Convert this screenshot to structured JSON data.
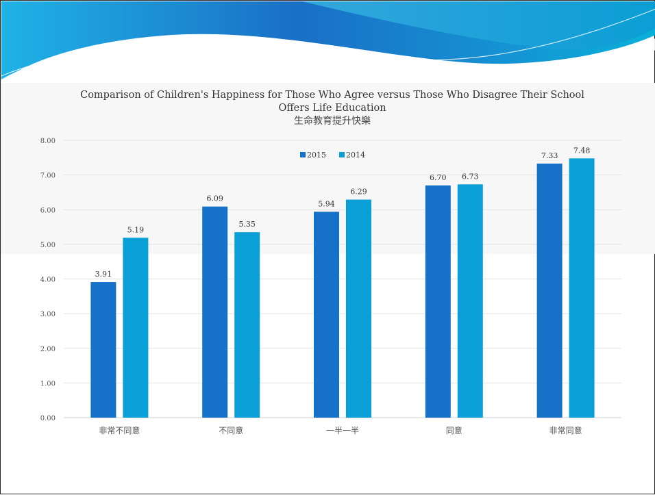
{
  "chart_data": {
    "type": "bar",
    "title": "Comparison of Children's Happiness for Those Who Agree versus Those Who Disagree Their School",
    "title_line2": "Offers Life Education",
    "subtitle": "生命教育提升快樂",
    "categories": [
      "非常不同意",
      "不同意",
      "一半一半",
      "同意",
      "非常同意"
    ],
    "series": [
      {
        "name": "2015",
        "values": [
          3.91,
          6.09,
          5.94,
          6.7,
          7.33
        ],
        "color": "#1672C9"
      },
      {
        "name": "2014",
        "values": [
          5.19,
          5.35,
          6.29,
          6.73,
          7.48
        ],
        "color": "#0B9FD8"
      }
    ],
    "ylim": [
      0,
      8
    ],
    "yticks": [
      "0.00",
      "1.00",
      "2.00",
      "3.00",
      "4.00",
      "5.00",
      "6.00",
      "7.00",
      "8.00"
    ],
    "grid": true,
    "legend_position": "top-center",
    "xlabel": "",
    "ylabel": ""
  }
}
